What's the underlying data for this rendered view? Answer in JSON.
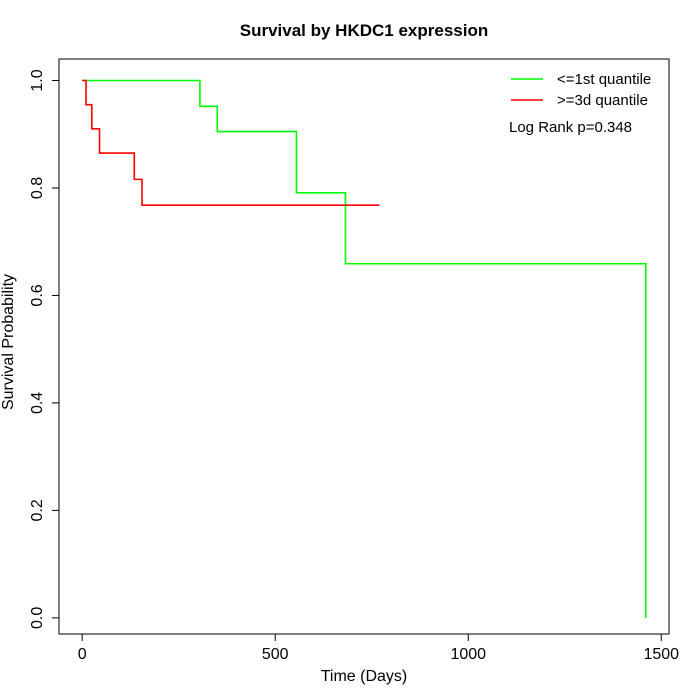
{
  "chart_data": {
    "type": "line",
    "title": "Survival by HKDC1 expression",
    "xlabel": "Time (Days)",
    "ylabel": "Survival Probability",
    "xlim": [
      -60,
      1520
    ],
    "ylim": [
      -0.03,
      1.04
    ],
    "x_ticks": [
      0,
      500,
      1000,
      1500
    ],
    "y_ticks": [
      0.0,
      0.2,
      0.4,
      0.6,
      0.8,
      1.0
    ],
    "x_tick_labels": [
      "0",
      "500",
      "1000",
      "1500"
    ],
    "y_tick_labels": [
      "0.0",
      "0.2",
      "0.4",
      "0.6",
      "0.8",
      "1.0"
    ],
    "grid": false,
    "legend_position": "top-right",
    "annotation": "Log Rank p=0.348",
    "series": [
      {
        "name": "<=1st quantile",
        "color": "#00ff00",
        "step": true,
        "x": [
          0,
          305,
          350,
          555,
          682,
          1460,
          1460
        ],
        "y": [
          1.0,
          0.952,
          0.905,
          0.791,
          0.659,
          0.659,
          0.0
        ]
      },
      {
        "name": ">=3d quantile",
        "color": "#ff0000",
        "step": true,
        "x": [
          0,
          10,
          25,
          45,
          135,
          155,
          770
        ],
        "y": [
          1.0,
          0.955,
          0.91,
          0.865,
          0.816,
          0.768,
          0.768
        ]
      }
    ]
  }
}
